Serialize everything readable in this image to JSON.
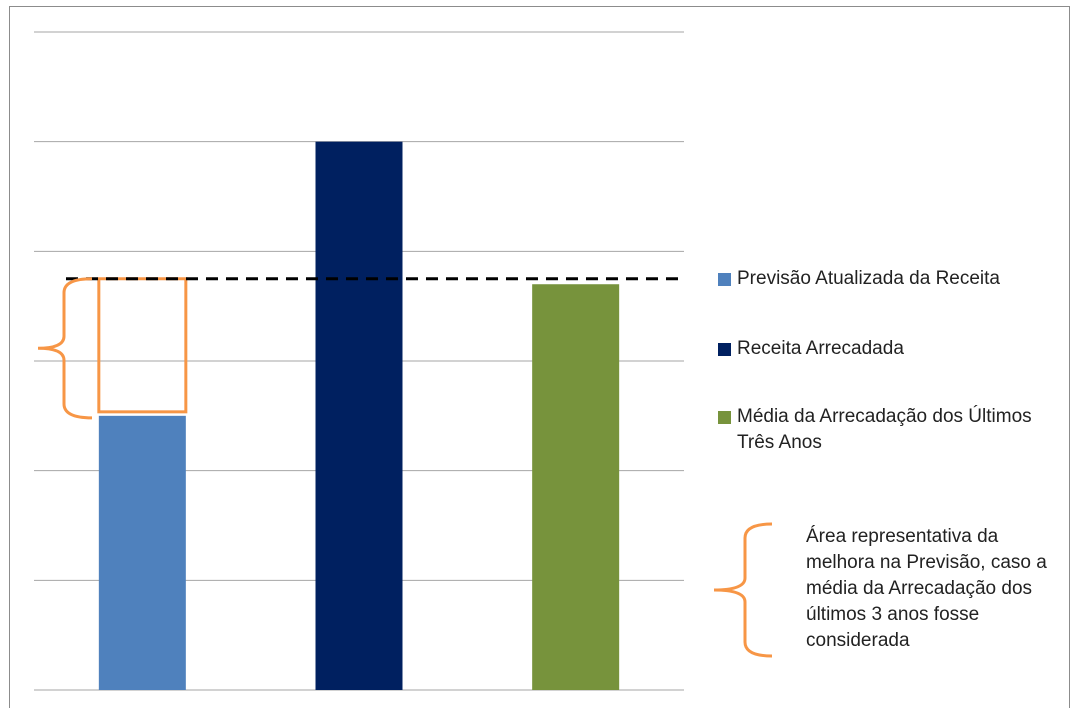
{
  "chart_data": {
    "type": "bar",
    "title": "",
    "xlabel": "",
    "ylabel": "",
    "ylim": [
      0,
      6
    ],
    "grid": true,
    "legend_position": "right",
    "categories": [
      "Previsão Atualizada da Receita",
      "Receita Arrecadada",
      "Média da Arrecadação dos Últimos Três Anos"
    ],
    "values": [
      2.5,
      5.0,
      3.7
    ],
    "colors": [
      "#4f81bd",
      "#002060",
      "#77933c"
    ],
    "reference_line": {
      "value": 3.75,
      "style": "dashed",
      "color": "#000000"
    },
    "highlight": {
      "from": 2.5,
      "to": 3.75,
      "color": "#f79646"
    },
    "legend": [
      {
        "label": "Previsão Atualizada da Receita",
        "color": "#4f81bd"
      },
      {
        "label": "Receita Arrecadada",
        "color": "#002060"
      },
      {
        "label": "Média da Arrecadação dos Últimos Três Anos",
        "color": "#77933c"
      }
    ],
    "annotation": "Área representativa da melhora na Previsão, caso a média da Arrecadação dos últimos 3 anos fosse considerada"
  }
}
